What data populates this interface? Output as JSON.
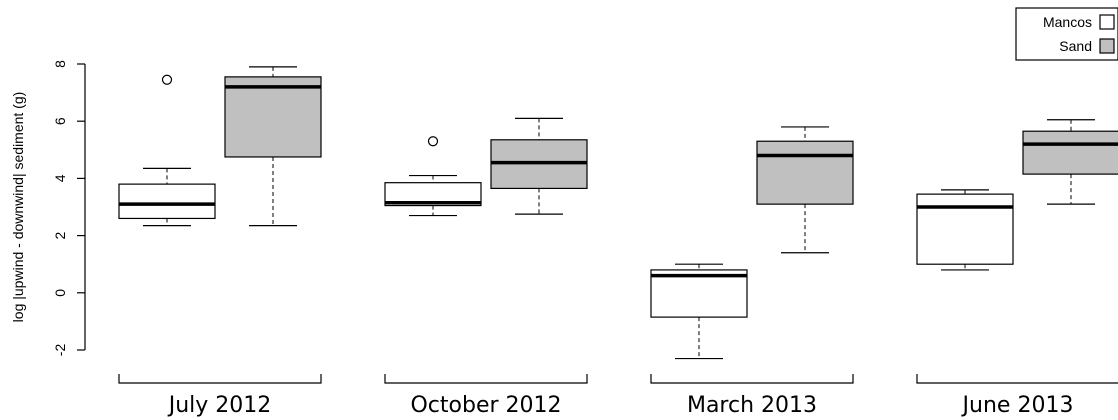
{
  "chart_data": {
    "type": "boxplot",
    "ylabel": "log |upwind - downwind| sediment (g)",
    "ylim": [
      -2.6,
      8.3
    ],
    "yticks": [
      -2,
      0,
      2,
      4,
      6,
      8
    ],
    "groups": [
      "July 2012",
      "October 2012",
      "March 2013",
      "June 2013"
    ],
    "series": [
      {
        "name": "Mancos",
        "fill": "#ffffff",
        "boxes": [
          {
            "group": "July 2012",
            "whisker_low": 2.35,
            "q1": 2.6,
            "median": 3.1,
            "q3": 3.8,
            "whisker_high": 4.35,
            "outliers": [
              7.45
            ]
          },
          {
            "group": "October 2012",
            "whisker_low": 2.7,
            "q1": 3.05,
            "median": 3.15,
            "q3": 3.85,
            "whisker_high": 4.1,
            "outliers": [
              5.3
            ]
          },
          {
            "group": "March 2013",
            "whisker_low": -2.3,
            "q1": -0.85,
            "median": 0.6,
            "q3": 0.8,
            "whisker_high": 1.0,
            "outliers": []
          },
          {
            "group": "June 2013",
            "whisker_low": 0.8,
            "q1": 1.0,
            "median": 3.0,
            "q3": 3.45,
            "whisker_high": 3.6,
            "outliers": []
          }
        ]
      },
      {
        "name": "Sand",
        "fill": "#c0c0c0",
        "boxes": [
          {
            "group": "July 2012",
            "whisker_low": 2.35,
            "q1": 4.75,
            "median": 7.2,
            "q3": 7.55,
            "whisker_high": 7.9,
            "outliers": []
          },
          {
            "group": "October 2012",
            "whisker_low": 2.75,
            "q1": 3.65,
            "median": 4.55,
            "q3": 5.35,
            "whisker_high": 6.1,
            "outliers": []
          },
          {
            "group": "March 2013",
            "whisker_low": 1.4,
            "q1": 3.1,
            "median": 4.8,
            "q3": 5.3,
            "whisker_high": 5.8,
            "outliers": []
          },
          {
            "group": "June 2013",
            "whisker_low": 3.1,
            "q1": 4.15,
            "median": 5.2,
            "q3": 5.65,
            "whisker_high": 6.05,
            "outliers": []
          }
        ]
      }
    ],
    "legend": {
      "position": "top-right",
      "entries": [
        "Mancos",
        "Sand"
      ]
    },
    "grid": false
  }
}
